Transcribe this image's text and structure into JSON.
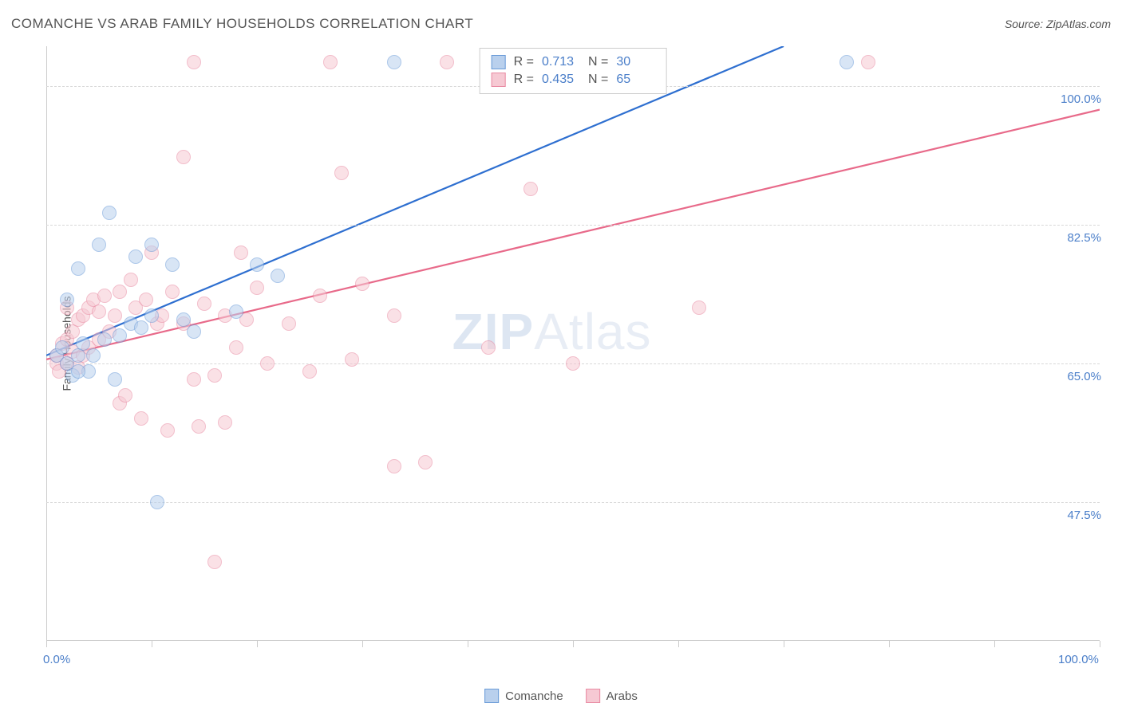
{
  "header": {
    "title": "COMANCHE VS ARAB FAMILY HOUSEHOLDS CORRELATION CHART",
    "source": "Source: ZipAtlas.com"
  },
  "chart": {
    "type": "scatter",
    "ylabel": "Family Households",
    "watermark_bold": "ZIP",
    "watermark_rest": "Atlas",
    "xlim": [
      0,
      100
    ],
    "ylim": [
      30,
      105
    ],
    "xtick_positions": [
      0,
      10,
      20,
      30,
      40,
      50,
      60,
      70,
      80,
      90,
      100
    ],
    "xtick_labels": {
      "0": "0.0%",
      "100": "100.0%"
    },
    "ytick_gridlines": [
      47.5,
      65.0,
      82.5,
      100.0
    ],
    "ytick_labels": [
      "47.5%",
      "65.0%",
      "82.5%",
      "100.0%"
    ],
    "background_color": "#ffffff",
    "grid_color": "#d8d8d8",
    "axis_color": "#cccccc",
    "tick_label_color": "#4a7ec9",
    "marker_radius": 9,
    "marker_opacity": 0.55,
    "series": [
      {
        "name": "Comanche",
        "fill": "#b9d0ed",
        "stroke": "#6a9bd8",
        "trend_color": "#2e6fd0",
        "trend_width": 2.2,
        "R": "0.713",
        "N": "30",
        "trend_start": {
          "x": 0,
          "y": 66
        },
        "trend_end": {
          "x": 70,
          "y": 105
        },
        "points": [
          {
            "x": 1,
            "y": 66
          },
          {
            "x": 1.5,
            "y": 67
          },
          {
            "x": 2,
            "y": 65
          },
          {
            "x": 2,
            "y": 73
          },
          {
            "x": 2.5,
            "y": 63.5
          },
          {
            "x": 3,
            "y": 77
          },
          {
            "x": 3.5,
            "y": 67.5
          },
          {
            "x": 3,
            "y": 66
          },
          {
            "x": 4,
            "y": 64
          },
          {
            "x": 5,
            "y": 80
          },
          {
            "x": 5.5,
            "y": 68
          },
          {
            "x": 6,
            "y": 84
          },
          {
            "x": 6.5,
            "y": 63
          },
          {
            "x": 7,
            "y": 68.5
          },
          {
            "x": 8,
            "y": 70
          },
          {
            "x": 8.5,
            "y": 78.5
          },
          {
            "x": 9,
            "y": 69.5
          },
          {
            "x": 10,
            "y": 71
          },
          {
            "x": 10,
            "y": 80
          },
          {
            "x": 10.5,
            "y": 47.5
          },
          {
            "x": 12,
            "y": 77.5
          },
          {
            "x": 13,
            "y": 70.5
          },
          {
            "x": 14,
            "y": 69
          },
          {
            "x": 18,
            "y": 71.5
          },
          {
            "x": 20,
            "y": 77.5
          },
          {
            "x": 22,
            "y": 76
          },
          {
            "x": 33,
            "y": 103
          },
          {
            "x": 76,
            "y": 103
          },
          {
            "x": 3,
            "y": 64
          },
          {
            "x": 4.5,
            "y": 66
          }
        ]
      },
      {
        "name": "Arabs",
        "fill": "#f6c9d3",
        "stroke": "#e98aa2",
        "trend_color": "#e86a8a",
        "trend_width": 2.2,
        "R": "0.435",
        "N": "65",
        "trend_start": {
          "x": 0,
          "y": 65.5
        },
        "trend_end": {
          "x": 100,
          "y": 97
        },
        "points": [
          {
            "x": 1,
            "y": 65
          },
          {
            "x": 1,
            "y": 66
          },
          {
            "x": 1.2,
            "y": 64
          },
          {
            "x": 1.5,
            "y": 67.5
          },
          {
            "x": 2,
            "y": 68
          },
          {
            "x": 2,
            "y": 65
          },
          {
            "x": 2,
            "y": 72
          },
          {
            "x": 2.5,
            "y": 66.5
          },
          {
            "x": 2.5,
            "y": 69
          },
          {
            "x": 3,
            "y": 70.5
          },
          {
            "x": 3,
            "y": 64.5
          },
          {
            "x": 3.5,
            "y": 71
          },
          {
            "x": 3.5,
            "y": 66
          },
          {
            "x": 4,
            "y": 72
          },
          {
            "x": 4,
            "y": 67
          },
          {
            "x": 4.5,
            "y": 73
          },
          {
            "x": 5,
            "y": 68
          },
          {
            "x": 5,
            "y": 71.5
          },
          {
            "x": 5.5,
            "y": 73.5
          },
          {
            "x": 6,
            "y": 69
          },
          {
            "x": 6.5,
            "y": 71
          },
          {
            "x": 7,
            "y": 74
          },
          {
            "x": 7,
            "y": 60
          },
          {
            "x": 7.5,
            "y": 61
          },
          {
            "x": 8,
            "y": 75.5
          },
          {
            "x": 8.5,
            "y": 72
          },
          {
            "x": 9,
            "y": 58
          },
          {
            "x": 9.5,
            "y": 73
          },
          {
            "x": 10,
            "y": 79
          },
          {
            "x": 10.5,
            "y": 70
          },
          {
            "x": 11,
            "y": 71
          },
          {
            "x": 11.5,
            "y": 56.5
          },
          {
            "x": 12,
            "y": 74
          },
          {
            "x": 13,
            "y": 70
          },
          {
            "x": 13,
            "y": 91
          },
          {
            "x": 14,
            "y": 103
          },
          {
            "x": 14,
            "y": 63
          },
          {
            "x": 14.5,
            "y": 57
          },
          {
            "x": 15,
            "y": 72.5
          },
          {
            "x": 16,
            "y": 40
          },
          {
            "x": 16,
            "y": 63.5
          },
          {
            "x": 17,
            "y": 57.5
          },
          {
            "x": 17,
            "y": 71
          },
          {
            "x": 18,
            "y": 67
          },
          {
            "x": 18.5,
            "y": 79
          },
          {
            "x": 19,
            "y": 70.5
          },
          {
            "x": 20,
            "y": 74.5
          },
          {
            "x": 21,
            "y": 65
          },
          {
            "x": 23,
            "y": 70
          },
          {
            "x": 25,
            "y": 64
          },
          {
            "x": 26,
            "y": 73.5
          },
          {
            "x": 27,
            "y": 103
          },
          {
            "x": 28,
            "y": 89
          },
          {
            "x": 29,
            "y": 65.5
          },
          {
            "x": 30,
            "y": 75
          },
          {
            "x": 33,
            "y": 52
          },
          {
            "x": 33,
            "y": 71
          },
          {
            "x": 36,
            "y": 52.5
          },
          {
            "x": 38,
            "y": 103
          },
          {
            "x": 42,
            "y": 67
          },
          {
            "x": 46,
            "y": 87
          },
          {
            "x": 50,
            "y": 65
          },
          {
            "x": 58,
            "y": 103
          },
          {
            "x": 62,
            "y": 72
          },
          {
            "x": 78,
            "y": 103
          }
        ]
      }
    ],
    "bottom_legend": [
      {
        "label": "Comanche",
        "fill": "#b9d0ed",
        "stroke": "#6a9bd8"
      },
      {
        "label": "Arabs",
        "fill": "#f6c9d3",
        "stroke": "#e98aa2"
      }
    ]
  }
}
